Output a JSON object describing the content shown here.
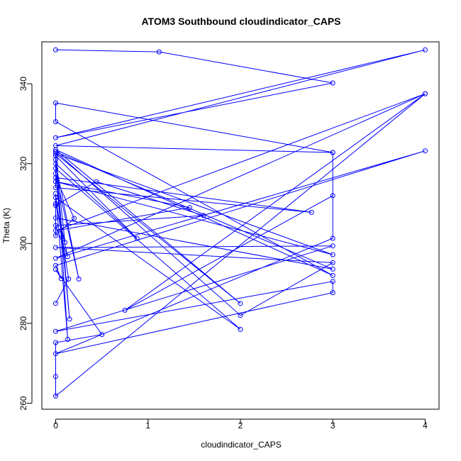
{
  "chart_data": {
    "type": "line",
    "title": "ATOM3 Southbound cloudindicator_CAPS",
    "xlabel": "cloudindicator_CAPS",
    "ylabel": "Theta (K)",
    "xlim": [
      -0.15,
      4.15
    ],
    "ylim": [
      258.5,
      350.5
    ],
    "xticks": [
      0,
      1,
      2,
      3,
      4
    ],
    "yticks": [
      260,
      280,
      300,
      320,
      340
    ],
    "grid": false,
    "line_color": "#0000ff",
    "series": [
      {
        "points": [
          [
            0,
            348.5
          ],
          [
            1.12,
            348.0
          ],
          [
            3.0,
            340.2
          ],
          [
            0.0,
            326.5
          ],
          [
            4.0,
            348.5
          ],
          [
            0.0,
            324.5
          ],
          [
            3.0,
            322.8
          ],
          [
            0.0,
            335.2
          ],
          [
            0.0,
            330.5
          ],
          [
            3.0,
            292.0
          ],
          [
            0.0,
            323.5
          ],
          [
            2.0,
            285.0
          ],
          [
            0.0,
            322.5
          ],
          [
            3.0,
            297.2
          ],
          [
            0.0,
            315.5
          ],
          [
            1.45,
            309.0
          ],
          [
            0.0,
            303.2
          ],
          [
            4.0,
            337.5
          ],
          [
            0.0,
            296.3
          ],
          [
            4.0,
            323.2
          ],
          [
            0.0,
            294.5
          ],
          [
            0.06,
            291.2
          ],
          [
            0.0,
            293.5
          ],
          [
            0.5,
            277.2
          ],
          [
            0.0,
            275.2
          ],
          [
            0.0,
            266.7
          ],
          [
            0.0,
            261.8
          ],
          [
            4.0,
            337.5
          ],
          [
            0.75,
            283.3
          ],
          [
            3.0,
            312.0
          ],
          [
            3.0,
            322.8
          ],
          [
            3.0,
            301.3
          ],
          [
            0.0,
            272.4
          ],
          [
            3.0,
            287.7
          ],
          [
            3.0,
            290.5
          ],
          [
            0.0,
            278.0
          ],
          [
            3.0,
            299.4
          ],
          [
            0.0,
            299.0
          ],
          [
            3.0,
            295.2
          ],
          [
            2.0,
            282.0
          ],
          [
            0.0,
            323.0
          ],
          [
            3.0,
            293.6
          ],
          [
            0.0,
            306.4
          ],
          [
            0.0,
            312.5
          ],
          [
            0.13,
            276.0
          ],
          [
            0.0,
            323.0
          ],
          [
            0.0,
            314.0
          ],
          [
            2.77,
            307.8
          ],
          [
            0.0,
            316.5
          ],
          [
            0.2,
            306.3
          ],
          [
            0.0,
            302.0
          ],
          [
            0.0,
            309.5
          ],
          [
            0.44,
            315.5
          ],
          [
            1.6,
            307.0
          ],
          [
            0.0,
            304.5
          ],
          [
            0.13,
            296.7
          ],
          [
            0.0,
            310.0
          ],
          [
            0.1,
            300.3
          ],
          [
            0.0,
            322.0
          ],
          [
            0.88,
            301.3
          ],
          [
            0.0,
            320.0
          ],
          [
            0.25,
            291.1
          ],
          [
            0.0,
            317.5
          ],
          [
            0.15,
            281.1
          ],
          [
            0.0,
            321.0
          ],
          [
            0.0,
            318.8
          ],
          [
            2.0,
            278.5
          ],
          [
            0.0,
            311.5
          ],
          [
            0.14,
            291.1
          ],
          [
            0.0,
            285.0
          ]
        ]
      }
    ]
  }
}
